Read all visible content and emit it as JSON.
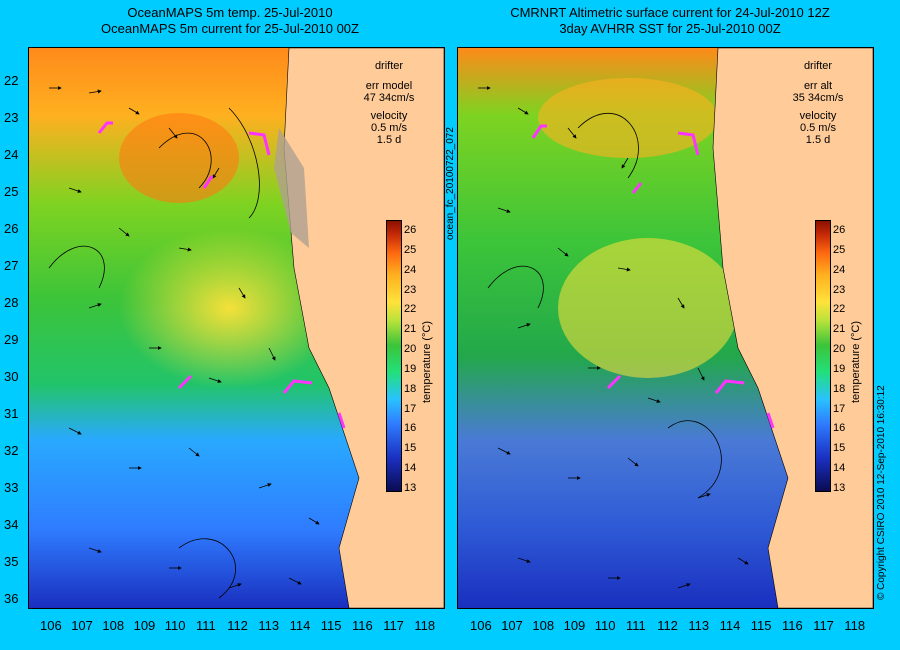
{
  "left_panel": {
    "title_line1": "OceanMAPS 5m temp. 25-Jul-2010",
    "title_line2": "OceanMAPS 5m current for 25-Jul-2010 00Z",
    "legend_drifter": "drifter",
    "legend_err": "err model",
    "legend_err_value": "47 34cm/s",
    "legend_velocity": "velocity",
    "legend_velocity_value": "0.5 m/s",
    "legend_duration": "1.5 d"
  },
  "right_panel": {
    "title_line1": "CMRNRT Altimetric surface current for 24-Jul-2010 12Z",
    "title_line2": "3day AVHRR SST for 25-Jul-2010 00Z",
    "legend_drifter": "drifter",
    "legend_err": "err alt",
    "legend_err_value": "35 34cm/s",
    "legend_velocity": "velocity",
    "legend_velocity_value": "0.5 m/s",
    "legend_duration": "1.5 d"
  },
  "latitude_labels": [
    "22",
    "23",
    "24",
    "25",
    "26",
    "27",
    "28",
    "29",
    "30",
    "31",
    "32",
    "33",
    "34",
    "35",
    "36"
  ],
  "longitude_labels": [
    "106",
    "107",
    "108",
    "109",
    "110",
    "111",
    "112",
    "113",
    "114",
    "115",
    "116",
    "117",
    "118"
  ],
  "colorbar": {
    "title": "temperature (°C)",
    "ticks": [
      "26",
      "25",
      "24",
      "23",
      "22",
      "21",
      "20",
      "19",
      "18",
      "17",
      "16",
      "15",
      "14",
      "13"
    ]
  },
  "middle_label": "ocean_fc_20100722_072",
  "copyright": "© Copyright CSIRO 2010  12-Sep-2010 16:30:12",
  "colors": {
    "background": "#00ccff",
    "land": "#ffcc99",
    "drifter": "#ff33ff"
  }
}
